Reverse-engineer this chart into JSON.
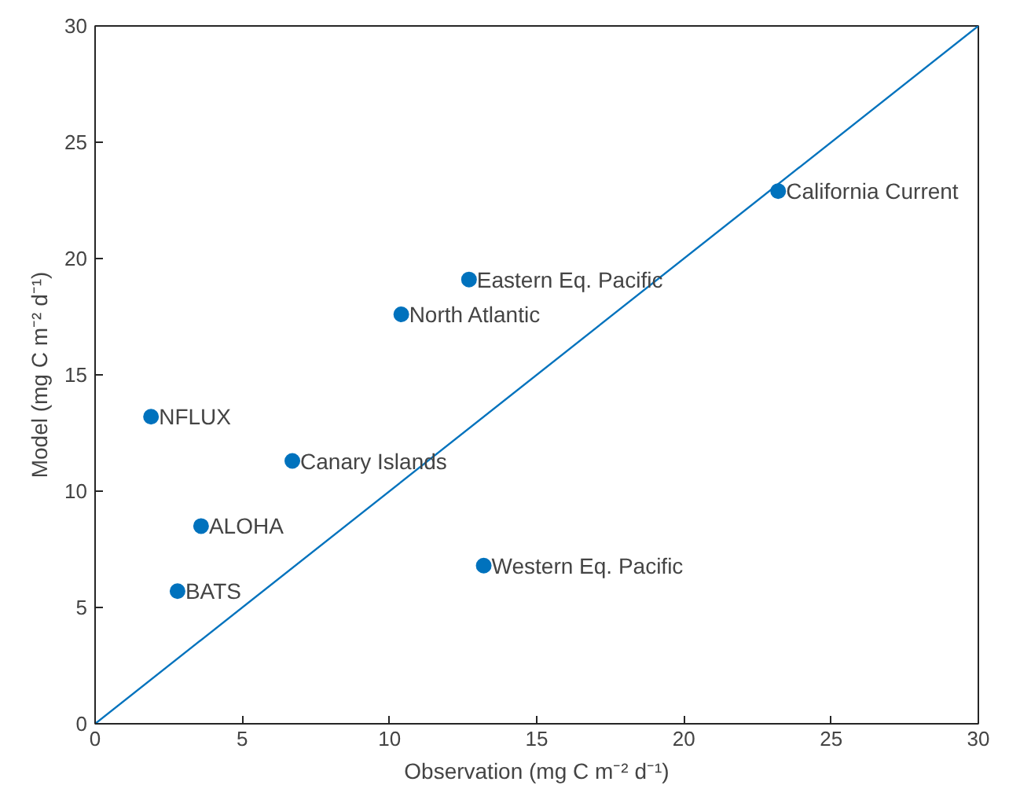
{
  "chart_data": {
    "type": "scatter",
    "xlabel": "Observation (mg C m⁻² d⁻¹)",
    "ylabel": "Model (mg C m⁻² d⁻¹)",
    "xlim": [
      0,
      30
    ],
    "ylim": [
      0,
      30
    ],
    "xticks": [
      0,
      5,
      10,
      15,
      20,
      25,
      30
    ],
    "yticks": [
      0,
      5,
      10,
      15,
      20,
      25,
      30
    ],
    "grid": false,
    "series": [
      {
        "marker": "circle",
        "color": "#0072bd",
        "x": [
          23.2,
          12.7,
          10.4,
          1.9,
          6.7,
          3.6,
          2.8,
          13.2
        ],
        "values": [
          22.9,
          19.1,
          17.6,
          13.2,
          11.3,
          8.5,
          5.7,
          6.8
        ]
      },
      {
        "type": "line",
        "color": "#0072bd",
        "line_style": "solid",
        "x": [
          0,
          30
        ],
        "values": [
          0,
          30
        ]
      }
    ],
    "annotations": [
      {
        "text": "California Current",
        "x": 23.2,
        "y": 22.9
      },
      {
        "text": "Eastern Eq. Pacific",
        "x": 12.7,
        "y": 19.1
      },
      {
        "text": "North Atlantic",
        "x": 10.4,
        "y": 17.6
      },
      {
        "text": "NFLUX",
        "x": 1.9,
        "y": 13.2
      },
      {
        "text": "Canary Islands",
        "x": 6.7,
        "y": 11.3
      },
      {
        "text": "ALOHA",
        "x": 3.6,
        "y": 8.5
      },
      {
        "text": "BATS",
        "x": 2.8,
        "y": 5.7
      },
      {
        "text": "Western Eq. Pacific",
        "x": 13.2,
        "y": 6.8
      }
    ]
  }
}
